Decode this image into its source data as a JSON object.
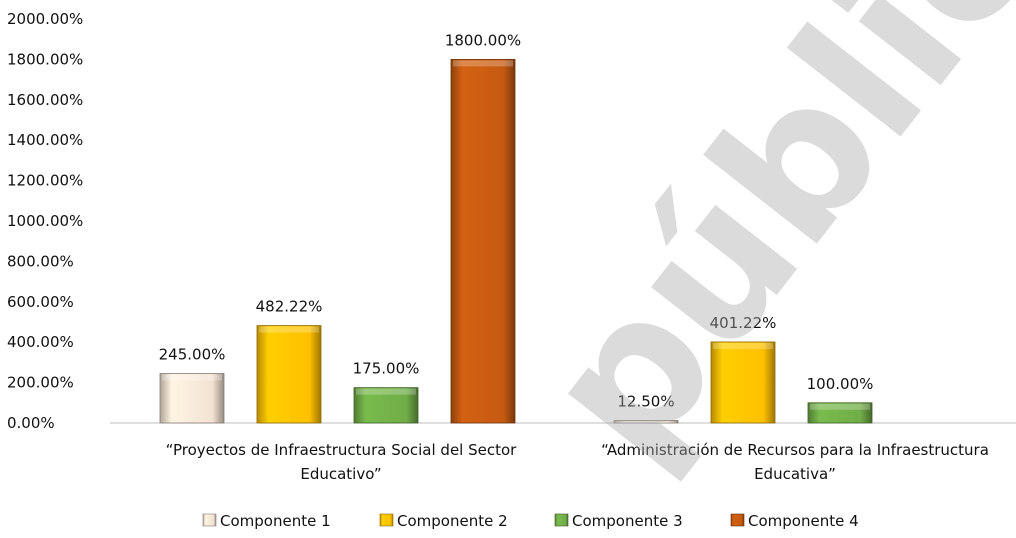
{
  "chart_data": {
    "type": "bar",
    "categories": [
      [
        "“Proyectos de Infraestructura Social del Sector",
        "Educativo”"
      ],
      [
        "“Administración de Recursos para la Infraestructura",
        "Educativa”"
      ]
    ],
    "series": [
      {
        "name": "Componente 1",
        "values": [
          245.0,
          12.5
        ],
        "labels": [
          "245.00%",
          "12.50%"
        ],
        "color": "#f2e2d2"
      },
      {
        "name": "Componente 2",
        "values": [
          482.22,
          401.22
        ],
        "labels": [
          "482.22%",
          "401.22%"
        ],
        "color": "#ffc000"
      },
      {
        "name": "Componente 3",
        "values": [
          175.0,
          100.0
        ],
        "labels": [
          "175.00%",
          "100.00%"
        ],
        "color": "#70ad47"
      },
      {
        "name": "Componente 4",
        "values": [
          1800.0,
          null
        ],
        "labels": [
          "1800.00%",
          null
        ],
        "color": "#c55a11"
      }
    ],
    "ylim": [
      0,
      2000
    ],
    "yticks": [
      "0.00%",
      "200.00%",
      "400.00%",
      "600.00%",
      "800.00%",
      "1000.00%",
      "1200.00%",
      "1400.00%",
      "1600.00%",
      "1800.00%",
      "2000.00%"
    ],
    "ytick_values": [
      0,
      200,
      400,
      600,
      800,
      1000,
      1200,
      1400,
      1600,
      1800,
      2000
    ],
    "legend_position": "bottom",
    "grid": false,
    "watermark": "público"
  }
}
